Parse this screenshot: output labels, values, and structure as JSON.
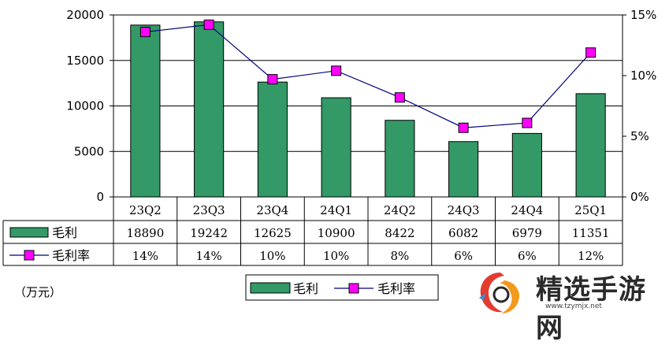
{
  "chart_data": {
    "type": "bar+line",
    "categories": [
      "23Q2",
      "23Q3",
      "23Q4",
      "24Q1",
      "24Q2",
      "24Q3",
      "24Q4",
      "25Q1"
    ],
    "series": [
      {
        "name": "毛利",
        "type": "bar",
        "axis": "left",
        "color": "#339966",
        "values": [
          18890,
          19242,
          12625,
          10900,
          8422,
          6082,
          6979,
          11351
        ],
        "table_values": [
          "18890",
          "19242",
          "12625",
          "10900",
          "8422",
          "6082",
          "6979",
          "11351"
        ]
      },
      {
        "name": "毛利率",
        "type": "line",
        "axis": "right",
        "color": "#ff00ff",
        "line_color": "#000080",
        "values": [
          13.6,
          14.2,
          9.7,
          10.4,
          8.2,
          5.7,
          6.1,
          11.9
        ],
        "table_values": [
          "14%",
          "14%",
          "10%",
          "10%",
          "8%",
          "6%",
          "6%",
          "12%"
        ]
      }
    ],
    "left_axis": {
      "min": 0,
      "max": 20000,
      "ticks": [
        "0",
        "5000",
        "10000",
        "15000",
        "20000"
      ]
    },
    "right_axis": {
      "min": 0,
      "max": 15,
      "ticks": [
        "0%",
        "5%",
        "10%",
        "15%"
      ]
    },
    "unit_label": "（万元）",
    "grid": true,
    "legend": {
      "position": "bottom",
      "entries": [
        "毛利",
        "毛利率"
      ]
    }
  },
  "watermark": {
    "title": "精选手游网",
    "url": "www.tzymjx.net"
  }
}
